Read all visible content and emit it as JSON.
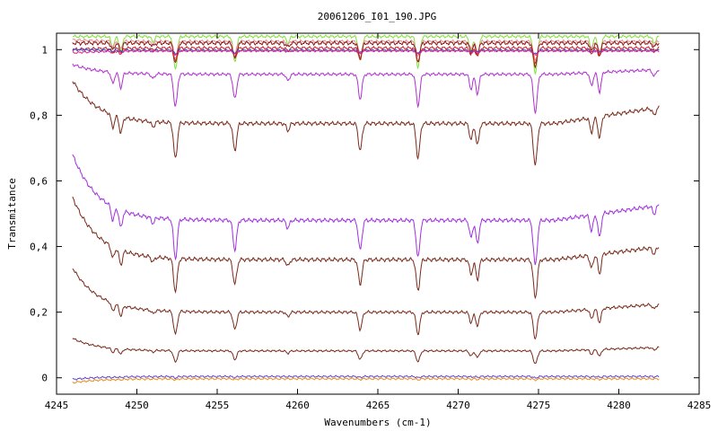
{
  "chart_data": {
    "type": "line",
    "title": "20061206_I01_190.JPG",
    "xlabel": "Wavenumbers (cm-1)",
    "ylabel": "Transmitance",
    "xlim": [
      4245,
      4285
    ],
    "ylim": [
      -0.05,
      1.05
    ],
    "xticks": [
      4245,
      4250,
      4255,
      4260,
      4265,
      4270,
      4275,
      4280,
      4285
    ],
    "yticks": [
      0,
      0.2,
      0.4,
      0.6,
      0.8,
      1
    ],
    "ytick_labels": [
      "0",
      "0,2",
      "0,4",
      "0,6",
      "0,8",
      "1"
    ],
    "x_range_data": [
      4246,
      4282.5
    ],
    "grid": false,
    "legend": "none",
    "absorption_lines": [
      {
        "x": 4248.5,
        "depth": 0.35,
        "width": 0.14
      },
      {
        "x": 4249.0,
        "depth": 0.45,
        "width": 0.14
      },
      {
        "x": 4251.0,
        "depth": 0.15,
        "width": 0.14
      },
      {
        "x": 4252.4,
        "depth": 1.0,
        "width": 0.16
      },
      {
        "x": 4256.1,
        "depth": 0.75,
        "width": 0.16
      },
      {
        "x": 4259.4,
        "depth": 0.2,
        "width": 0.14
      },
      {
        "x": 4263.9,
        "depth": 0.75,
        "width": 0.16
      },
      {
        "x": 4267.5,
        "depth": 0.95,
        "width": 0.16
      },
      {
        "x": 4270.8,
        "depth": 0.45,
        "width": 0.14
      },
      {
        "x": 4271.2,
        "depth": 0.6,
        "width": 0.14
      },
      {
        "x": 4274.8,
        "depth": 1.15,
        "width": 0.17
      },
      {
        "x": 4278.3,
        "depth": 0.4,
        "width": 0.14
      },
      {
        "x": 4278.8,
        "depth": 0.6,
        "width": 0.14
      },
      {
        "x": 4282.2,
        "depth": 0.2,
        "width": 0.14
      }
    ],
    "series": [
      {
        "color": "#7fe23a",
        "base": 1.04,
        "start": 1.04,
        "tail": 0.0,
        "depth": 0.1,
        "ripple": 0.003
      },
      {
        "color": "#e89090",
        "base": 1.025,
        "start": 1.03,
        "tail": 0.0,
        "depth": 0.05,
        "ripple": 0.003
      },
      {
        "color": "#8b1a1a",
        "base": 1.02,
        "start": 1.02,
        "tail": 0.0,
        "depth": 0.06,
        "ripple": 0.004
      },
      {
        "color": "#cc2222",
        "base": 1.005,
        "start": 1.0,
        "tail": 0.0,
        "depth": 0.04,
        "ripple": 0.003
      },
      {
        "color": "#2050d0",
        "base": 0.998,
        "start": 1.0,
        "tail": 0.0,
        "depth": 0.01,
        "ripple": 0.002
      },
      {
        "color": "#e0208a",
        "base": 0.996,
        "start": 0.99,
        "tail": 0.0,
        "depth": 0.01,
        "ripple": 0.002
      },
      {
        "color": "#b030d0",
        "base": 0.925,
        "start": 0.955,
        "tail": 0.04,
        "depth": 0.1,
        "ripple": 0.003
      },
      {
        "color": "#7a2a1a",
        "base": 0.775,
        "start": 0.905,
        "tail": 0.14,
        "depth": 0.11,
        "ripple": 0.004
      },
      {
        "color": "#a030e0",
        "base": 0.48,
        "start": 0.68,
        "tail": 0.13,
        "depth": 0.12,
        "ripple": 0.004
      },
      {
        "color": "#7a2a1a",
        "base": 0.36,
        "start": 0.55,
        "tail": 0.11,
        "depth": 0.1,
        "ripple": 0.004
      },
      {
        "color": "#7a2a1a",
        "base": 0.2,
        "start": 0.335,
        "tail": 0.07,
        "depth": 0.07,
        "ripple": 0.003
      },
      {
        "color": "#7a2a1a",
        "base": 0.082,
        "start": 0.12,
        "tail": 0.03,
        "depth": 0.035,
        "ripple": 0.002
      },
      {
        "color": "#6a4ad0",
        "base": 0.004,
        "start": -0.005,
        "tail": 0.0,
        "depth": 0.004,
        "ripple": 0.002
      },
      {
        "color": "#e89020",
        "base": -0.003,
        "start": -0.015,
        "tail": 0.0,
        "depth": 0.003,
        "ripple": 0.002
      }
    ]
  }
}
